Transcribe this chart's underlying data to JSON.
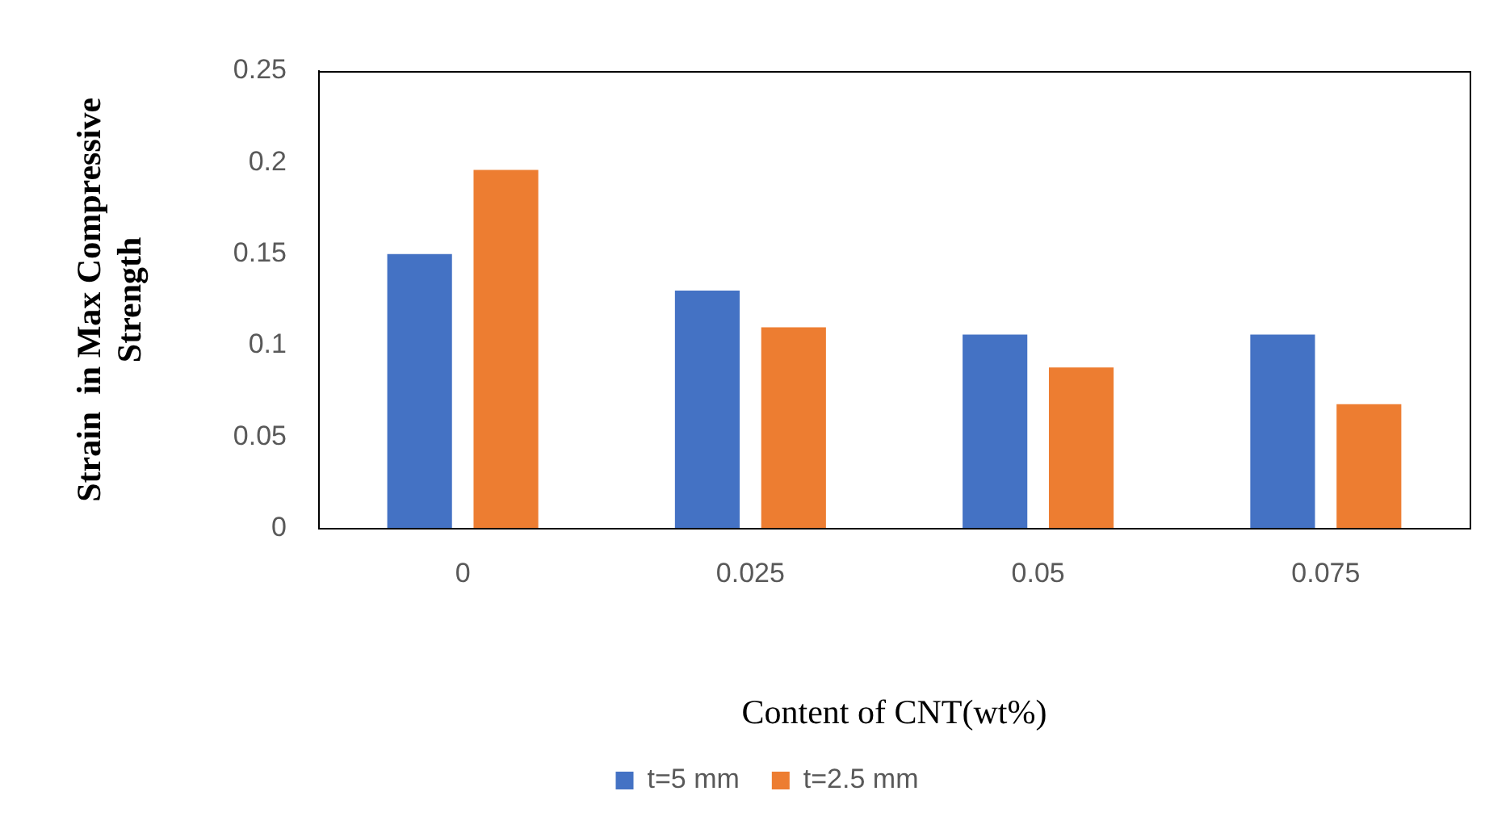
{
  "chart_data": {
    "type": "bar",
    "xlabel": "Content of CNT(wt%)",
    "ylabel": "Strain  in Max Compressive Strength",
    "categories": [
      "0",
      "0.025",
      "0.05",
      "0.075"
    ],
    "series": [
      {
        "name": "t=5 mm",
        "color": "#4472c4",
        "values": [
          0.15,
          0.13,
          0.106,
          0.106
        ]
      },
      {
        "name": "t=2.5 mm",
        "color": "#ed7d31",
        "values": [
          0.196,
          0.11,
          0.088,
          0.068
        ]
      }
    ],
    "ylim": [
      0,
      0.25
    ],
    "yticks": [
      0,
      0.05,
      0.1,
      0.15,
      0.2,
      0.25
    ],
    "grid": false,
    "legend": "bottom"
  }
}
